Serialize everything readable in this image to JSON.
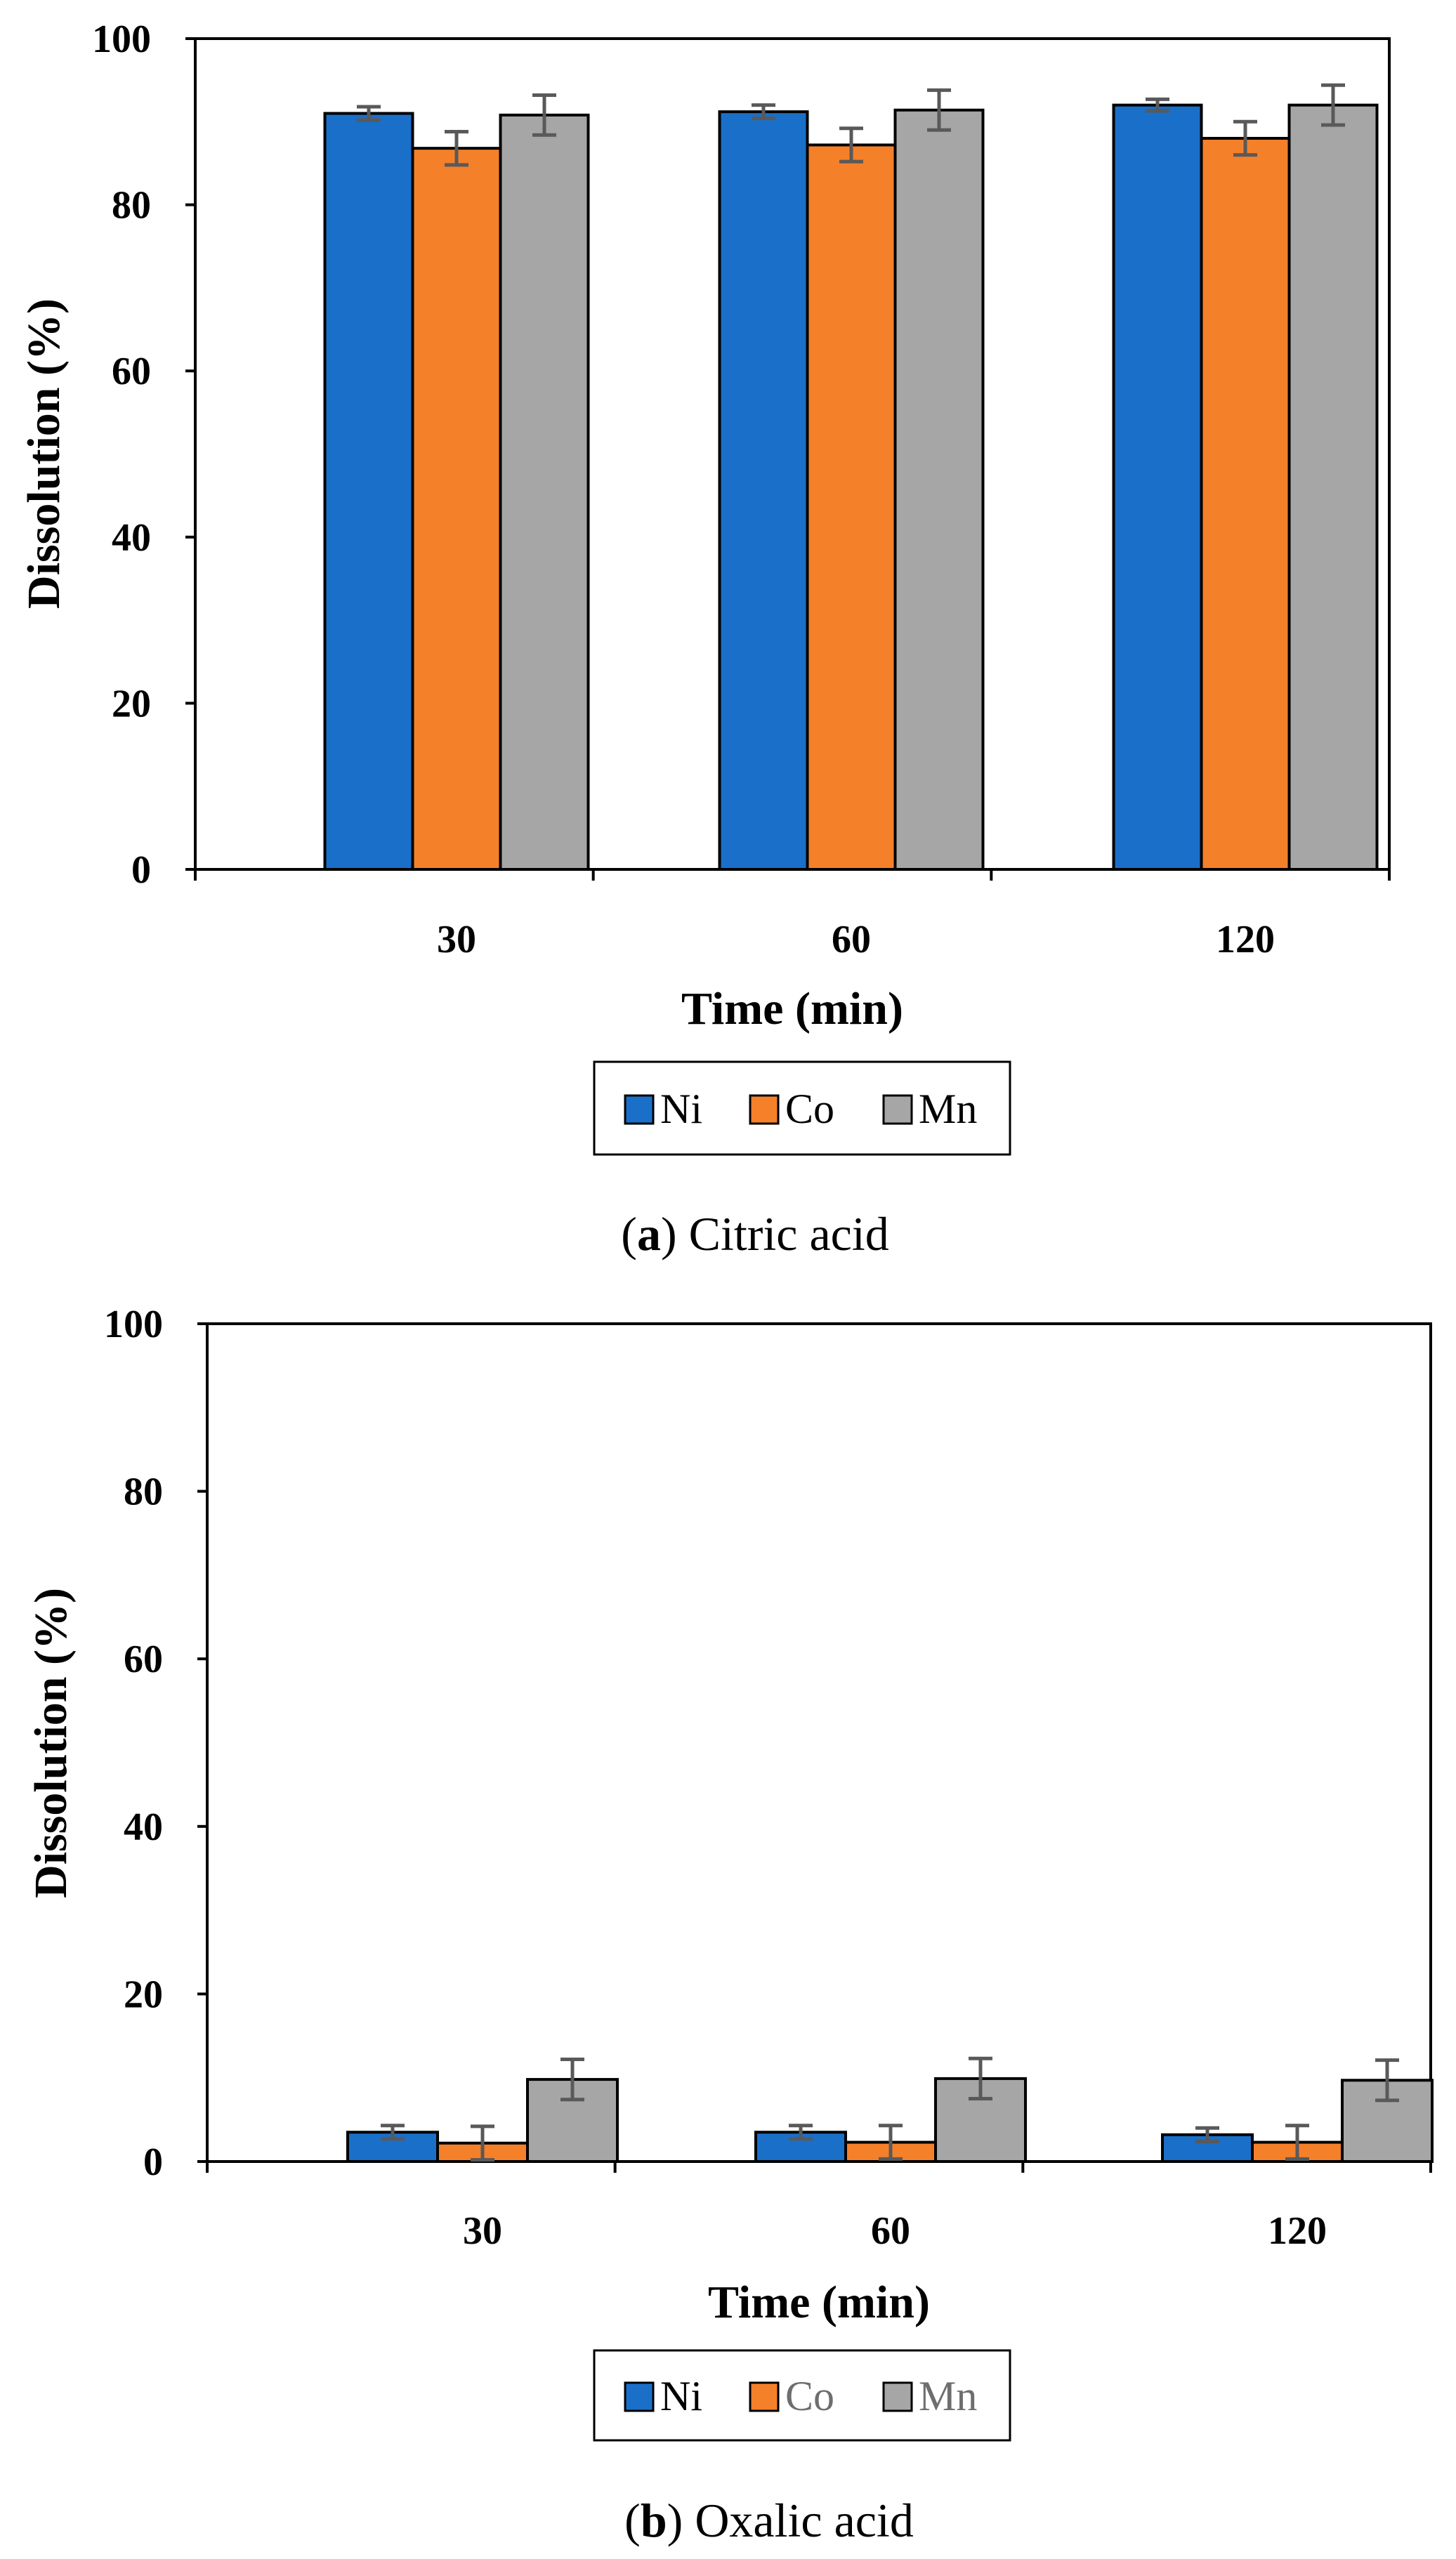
{
  "colors": {
    "Ni": "#1a6fc9",
    "Co": "#f5802a",
    "Mn": "#a6a6a6",
    "error_bar": "#595959"
  },
  "chart_data": [
    {
      "type": "bar",
      "panel_letter": "a",
      "title": "Citric acid",
      "xlabel": "Time (min)",
      "ylabel": "Dissolution (%)",
      "categories": [
        "30",
        "60",
        "120"
      ],
      "ylim": [
        0,
        100
      ],
      "yticks": [
        "0",
        "20",
        "40",
        "60",
        "80",
        "100"
      ],
      "legend_position": "bottom",
      "series": [
        {
          "name": "Ni",
          "values": [
            91.0,
            91.2,
            92.0
          ],
          "errors": [
            0.8,
            0.8,
            0.7
          ]
        },
        {
          "name": "Co",
          "values": [
            86.8,
            87.2,
            88.0
          ],
          "errors": [
            2.0,
            2.0,
            2.0
          ]
        },
        {
          "name": "Mn",
          "values": [
            90.8,
            91.4,
            92.0
          ],
          "errors": [
            2.4,
            2.4,
            2.4
          ]
        }
      ]
    },
    {
      "type": "bar",
      "panel_letter": "b",
      "title": "Oxalic acid",
      "xlabel": "Time (min)",
      "ylabel": "Dissolution (%)",
      "categories": [
        "30",
        "60",
        "120"
      ],
      "ylim": [
        0,
        100
      ],
      "yticks": [
        "0",
        "20",
        "40",
        "60",
        "80",
        "100"
      ],
      "legend_position": "bottom",
      "series": [
        {
          "name": "Ni",
          "values": [
            3.5,
            3.5,
            3.2
          ],
          "errors": [
            0.8,
            0.8,
            0.8
          ]
        },
        {
          "name": "Co",
          "values": [
            2.2,
            2.3,
            2.3
          ],
          "errors": [
            2.0,
            2.0,
            2.0
          ]
        },
        {
          "name": "Mn",
          "values": [
            9.8,
            9.9,
            9.7
          ],
          "errors": [
            2.4,
            2.4,
            2.4
          ]
        }
      ]
    }
  ]
}
